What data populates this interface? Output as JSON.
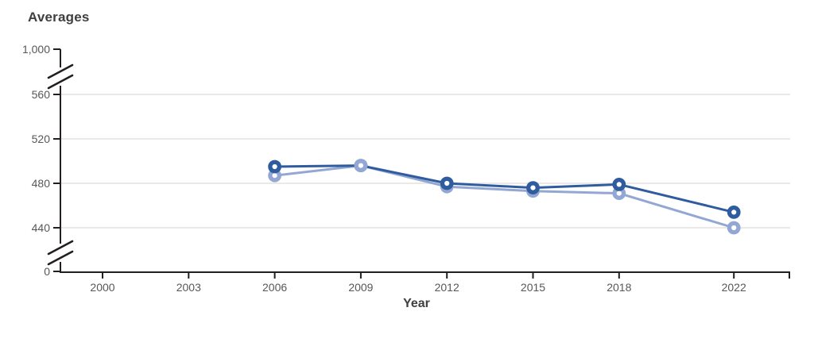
{
  "page": {
    "title": "Averages",
    "x_axis_title": "Year"
  },
  "chart_data": {
    "type": "line",
    "title": "Averages",
    "xlabel": "Year",
    "ylabel": "",
    "x_tick_labels": [
      "2000",
      "2003",
      "2006",
      "2009",
      "2012",
      "2015",
      "2018",
      "2022"
    ],
    "x_tick_years": [
      2000,
      2003,
      2006,
      2009,
      2012,
      2015,
      2018,
      2022
    ],
    "y_tick_labels": [
      "0",
      "440",
      "480",
      "520",
      "560",
      "1,000"
    ],
    "y_gridline_values": [
      440,
      480,
      520,
      560
    ],
    "y_axis_breaks": [
      [
        0,
        440
      ],
      [
        560,
        1000
      ]
    ],
    "ylim_full": [
      0,
      1000
    ],
    "ylim_zoom": [
      440,
      560
    ],
    "grid": true,
    "legend": "none",
    "series": [
      {
        "name": "series-light-blue",
        "color": "#92a7d4",
        "x": [
          2006,
          2009,
          2012,
          2015,
          2018,
          2022
        ],
        "values": [
          487,
          496,
          477,
          473,
          471,
          440
        ]
      },
      {
        "name": "series-dark-blue",
        "color": "#2f5c9f",
        "x": [
          2006,
          2009,
          2012,
          2015,
          2018,
          2022
        ],
        "values": [
          495,
          496,
          480,
          476,
          479,
          454
        ]
      }
    ],
    "marker": "open-circle",
    "colors": {
      "axis": "#231f20",
      "gridline": "#eae9e7",
      "tick_text": "#57575a",
      "title_text": "#3f3f3f",
      "marker_hole": "#ffffff"
    }
  }
}
